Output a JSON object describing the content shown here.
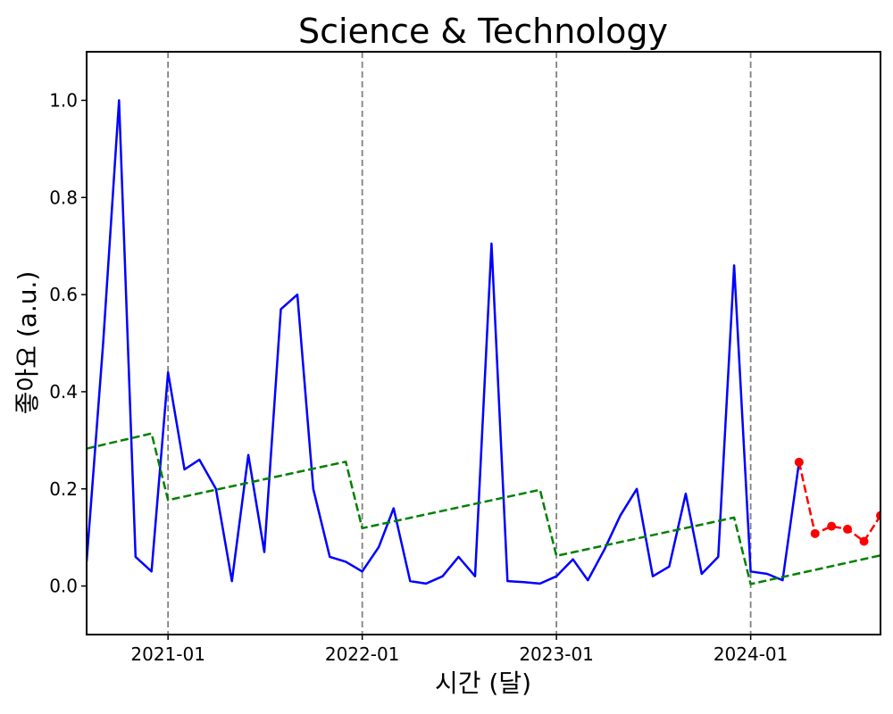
{
  "chart_data": {
    "type": "line",
    "title": "Science & Technology",
    "xlabel": "시간 (달)",
    "ylabel": "좋아요 (a.u.)",
    "xlim": [
      "2020-08-01",
      "2024-09-01"
    ],
    "ylim": [
      -0.1,
      1.1
    ],
    "x_tick_labels": [
      "2021-01",
      "2022-01",
      "2023-01",
      "2024-01"
    ],
    "x_ticks": [
      "2021-01-01",
      "2022-01-01",
      "2023-01-01",
      "2024-01-01"
    ],
    "y_ticks": [
      0.0,
      0.2,
      0.4,
      0.6,
      0.8,
      1.0
    ],
    "y_tick_labels": [
      "0.0",
      "0.2",
      "0.4",
      "0.6",
      "0.8",
      "1.0"
    ],
    "year_boundaries": [
      "2021-01-01",
      "2022-01-01",
      "2023-01-01",
      "2024-01-01"
    ],
    "grid": false,
    "legend": "none",
    "colors": {
      "observed": "#0000ff",
      "trend": "#008000",
      "forecast": "#ff0000",
      "boundary": "#808080"
    },
    "series": [
      {
        "role": "observed",
        "style": "solid",
        "x": [
          "2020-08-01",
          "2020-09-01",
          "2020-10-01",
          "2020-11-01",
          "2020-12-01",
          "2021-01-01",
          "2021-02-01",
          "2021-03-01",
          "2021-04-01",
          "2021-05-01",
          "2021-06-01",
          "2021-07-01",
          "2021-08-01",
          "2021-09-01",
          "2021-10-01",
          "2021-11-01",
          "2021-12-01",
          "2022-01-01",
          "2022-02-01",
          "2022-03-01",
          "2022-04-01",
          "2022-05-01",
          "2022-06-01",
          "2022-07-01",
          "2022-08-01",
          "2022-09-01",
          "2022-10-01",
          "2022-11-01",
          "2022-12-01",
          "2023-01-01",
          "2023-02-01",
          "2023-03-01",
          "2023-04-01",
          "2023-05-01",
          "2023-06-01",
          "2023-07-01",
          "2023-08-01",
          "2023-09-01",
          "2023-10-01",
          "2023-11-01",
          "2023-12-01",
          "2024-01-01",
          "2024-02-01",
          "2024-03-01",
          "2024-04-01"
        ],
        "y": [
          0.05,
          0.5,
          1.0,
          0.06,
          0.03,
          0.44,
          0.24,
          0.26,
          0.2,
          0.01,
          0.27,
          0.07,
          0.57,
          0.6,
          0.2,
          0.06,
          0.05,
          0.03,
          0.08,
          0.16,
          0.01,
          0.005,
          0.02,
          0.06,
          0.02,
          0.705,
          0.01,
          0.008,
          0.005,
          0.02,
          0.055,
          0.012,
          0.075,
          0.145,
          0.2,
          0.02,
          0.04,
          0.19,
          0.025,
          0.06,
          0.66,
          0.03,
          0.025,
          0.012,
          0.255
        ]
      },
      {
        "role": "trend",
        "style": "dashed",
        "x": [
          "2020-08-01",
          "2020-12-01",
          "2021-01-01",
          "2021-12-01",
          "2022-01-01",
          "2022-12-01",
          "2023-01-01",
          "2023-12-01",
          "2024-01-01",
          "2024-09-01"
        ],
        "y": [
          0.283,
          0.314,
          0.177,
          0.256,
          0.119,
          0.198,
          0.062,
          0.141,
          0.004,
          0.063
        ]
      },
      {
        "role": "forecast",
        "style": "dashed-markers",
        "x": [
          "2024-04-01",
          "2024-05-01",
          "2024-06-01",
          "2024-07-01",
          "2024-08-01",
          "2024-09-01"
        ],
        "y": [
          0.255,
          0.108,
          0.123,
          0.117,
          0.092,
          0.145
        ]
      }
    ]
  }
}
